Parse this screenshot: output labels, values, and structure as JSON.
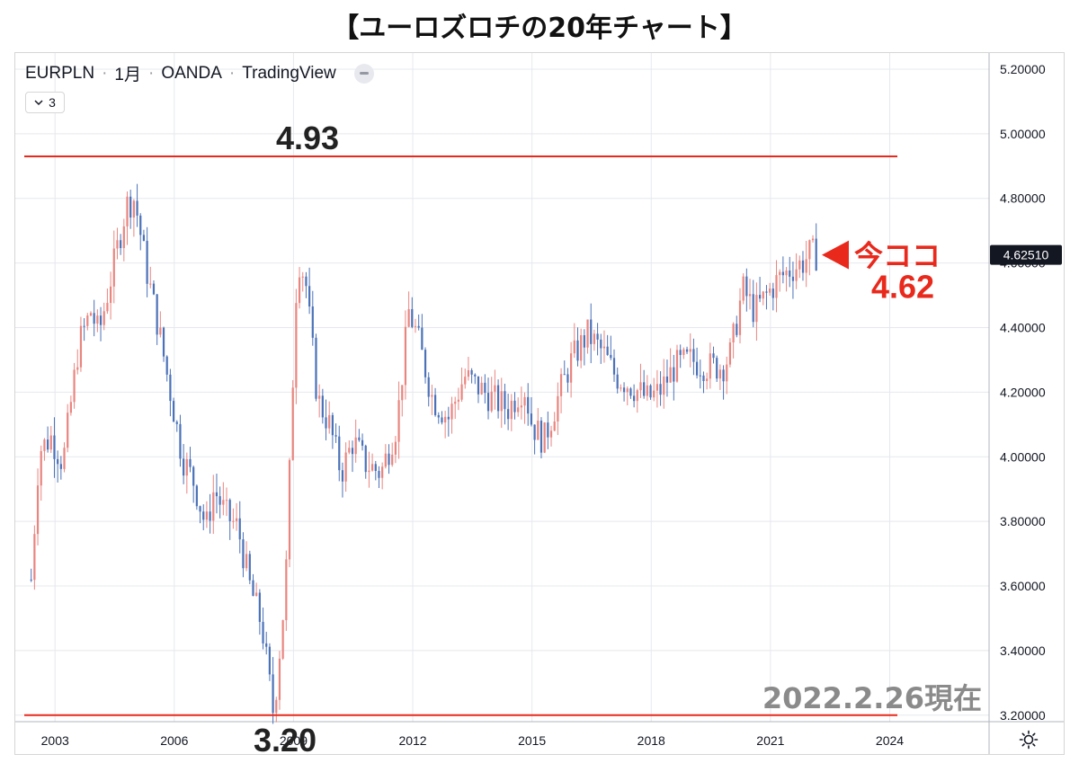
{
  "title": "【ユーロズロチの20年チャート】",
  "legend": {
    "symbol": "EURPLN",
    "interval": "1月",
    "broker": "OANDA",
    "platform": "TradingView",
    "collapse_count": "3"
  },
  "annotations": {
    "high_label": "4.93",
    "low_label": "3.20",
    "now_label": "今ココ",
    "now_value": "4.62",
    "date_note": "2022.2.26現在"
  },
  "colors": {
    "up": "#e9857f",
    "down": "#4b72b8",
    "line": "#e8291c",
    "now_text": "#e8291c",
    "grid": "#e6e8ee",
    "price_tag_bg": "#131722"
  },
  "icons": {
    "settings": "sun-gear-icon",
    "collapse": "chevron-down-icon",
    "visibility": "eye-off-icon"
  },
  "chart_data": {
    "type": "candlestick",
    "symbol": "EURPLN",
    "interval": "1M",
    "xlim": [
      2002.0,
      2026.5
    ],
    "ylim": [
      3.18,
      5.25
    ],
    "x_ticks": [
      2003,
      2006,
      2009,
      2012,
      2015,
      2018,
      2021,
      2024
    ],
    "y_ticks": [
      3.2,
      3.4,
      3.6,
      3.8,
      4.0,
      4.2,
      4.4,
      4.6,
      4.8,
      5.0,
      5.2
    ],
    "y_tick_labels": [
      "3.20000",
      "3.40000",
      "3.60000",
      "3.80000",
      "4.00000",
      "4.20000",
      "4.40000",
      "4.60000",
      "4.80000",
      "5.00000",
      "5.20000"
    ],
    "current_price": 4.6251,
    "current_price_label": "4.62510",
    "horizontal_lines": [
      4.93,
      3.2
    ],
    "close_path": [
      [
        2002.4,
        3.62
      ],
      [
        2002.6,
        4.02
      ],
      [
        2002.9,
        4.06
      ],
      [
        2003.2,
        3.98
      ],
      [
        2003.6,
        4.35
      ],
      [
        2003.9,
        4.45
      ],
      [
        2004.1,
        4.38
      ],
      [
        2004.4,
        4.55
      ],
      [
        2004.8,
        4.78
      ],
      [
        2005.0,
        4.8
      ],
      [
        2005.3,
        4.58
      ],
      [
        2005.6,
        4.4
      ],
      [
        2005.9,
        4.2
      ],
      [
        2006.2,
        4.0
      ],
      [
        2006.5,
        3.92
      ],
      [
        2006.8,
        3.78
      ],
      [
        2007.0,
        3.9
      ],
      [
        2007.3,
        3.82
      ],
      [
        2007.6,
        3.78
      ],
      [
        2007.9,
        3.6
      ],
      [
        2008.2,
        3.48
      ],
      [
        2008.5,
        3.2
      ],
      [
        2008.8,
        3.6
      ],
      [
        2009.0,
        4.3
      ],
      [
        2009.1,
        4.62
      ],
      [
        2009.3,
        4.55
      ],
      [
        2009.6,
        4.18
      ],
      [
        2009.9,
        4.1
      ],
      [
        2010.2,
        3.95
      ],
      [
        2010.5,
        4.05
      ],
      [
        2010.8,
        3.98
      ],
      [
        2011.2,
        3.95
      ],
      [
        2011.6,
        4.1
      ],
      [
        2011.9,
        4.45
      ],
      [
        2012.1,
        4.38
      ],
      [
        2012.5,
        4.18
      ],
      [
        2012.9,
        4.12
      ],
      [
        2013.3,
        4.25
      ],
      [
        2013.6,
        4.22
      ],
      [
        2014.0,
        4.18
      ],
      [
        2014.4,
        4.15
      ],
      [
        2014.8,
        4.22
      ],
      [
        2015.0,
        4.1
      ],
      [
        2015.3,
        4.05
      ],
      [
        2015.7,
        4.2
      ],
      [
        2016.0,
        4.3
      ],
      [
        2016.4,
        4.38
      ],
      [
        2016.8,
        4.32
      ],
      [
        2017.1,
        4.25
      ],
      [
        2017.5,
        4.22
      ],
      [
        2017.9,
        4.18
      ],
      [
        2018.2,
        4.2
      ],
      [
        2018.6,
        4.28
      ],
      [
        2019.0,
        4.3
      ],
      [
        2019.4,
        4.28
      ],
      [
        2019.8,
        4.28
      ],
      [
        2020.0,
        4.32
      ],
      [
        2020.3,
        4.52
      ],
      [
        2020.6,
        4.45
      ],
      [
        2020.9,
        4.5
      ],
      [
        2021.2,
        4.55
      ],
      [
        2021.5,
        4.58
      ],
      [
        2021.8,
        4.6
      ],
      [
        2022.0,
        4.63
      ],
      [
        2022.15,
        4.6251
      ]
    ]
  }
}
